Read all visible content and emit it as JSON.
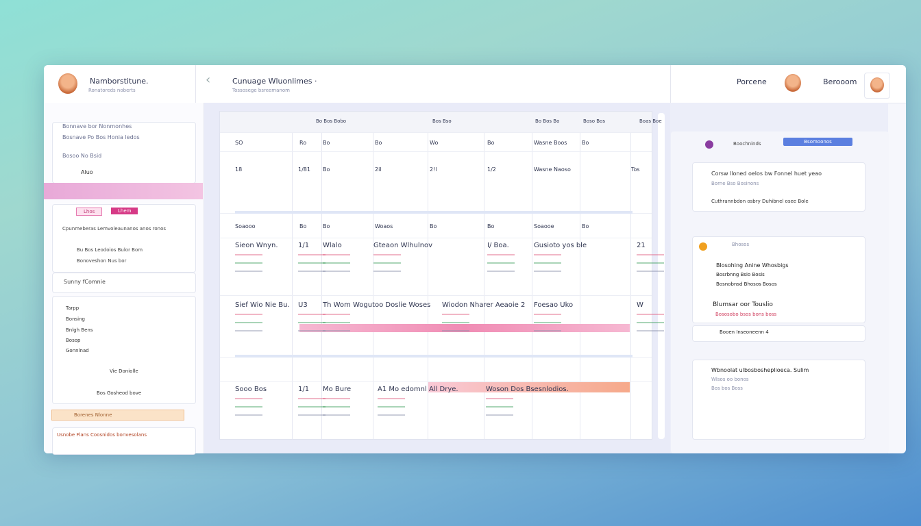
{
  "header": {
    "user_name": "Namborstitune.",
    "user_sub": "Ronatoreds noberts",
    "title": "Cunuage Wluonlimes ·",
    "subtitle": "Tossosege bsreemanom",
    "user2": "Porcene",
    "user3": "Berooom"
  },
  "sidebar": {
    "note_lines": [
      "Bonnave bor Nonmonhes",
      "Bosnave Po Bos Honia ledos",
      "Bosoo No Bsid"
    ],
    "note_footer": "Aluo",
    "tabs": [
      "Lhos",
      "Lhem"
    ],
    "list_title": "Cpunmeberas Lemvoleaunanos anos ronos",
    "list_items": [
      "Bu Bos Leodoios Bulor Bom",
      "Bonoveshon Nus bor"
    ],
    "search": "Sunny fComnie",
    "menu": [
      "Tarpp",
      "Bonsing",
      "Bnlgh Bens",
      "Bosop",
      "Gonnlnad"
    ],
    "rows": [
      "Vie Doniolle",
      "Bos Gosheod bove"
    ],
    "banner": "Borenes Nlonne",
    "footer_text": "Usnobe Flans Coosnidos bonvesolans"
  },
  "grid": {
    "header": [
      "Bo Bos Bobo",
      "Bos Bso",
      "Bo Bos Bo",
      "Boso Bos",
      "Boas Boe"
    ],
    "rows": [
      [
        "SO",
        "Ro",
        "Bo",
        "Bo",
        "Wo",
        "Bo",
        "Wasne Boos",
        "Bo"
      ],
      [
        "18",
        "1/81",
        "Bo",
        "2il",
        "2!l",
        "1/2",
        "Wasne Naoso",
        "Tos"
      ],
      [
        "Soaooo",
        "Bo",
        "Bo",
        "Woaos",
        "Bo",
        "Bo",
        "Soaooe",
        "Bo"
      ],
      [
        "Sieon Wnyn.",
        "1/1",
        "Wlalo",
        "Gteaon Wlhulnov",
        "I/ Boa.",
        "Gusioto yos ble",
        "21"
      ],
      [
        "Sief Wio Nie Bu.",
        "U3",
        "Th Wom Wogutoo Doslie Woses",
        "Wiodon Nharer Aeaoie 2",
        "Foesao Uko",
        "W"
      ],
      [
        "Sooo Bos",
        "1/1",
        "Mo Bure",
        "A1 Mo edomnl All Drye.",
        "Woson Dos Bsesnlodios."
      ]
    ]
  },
  "panel": {
    "toolbar": "Boochninds",
    "button": "Bsomoonos",
    "card1": [
      "Corsw lloned oelos bw Fonnel huet yeao",
      "Borne Bso Bosinons",
      "Cuthrannbdon osbry Duhibnel osee Bole"
    ],
    "card2_title": "Bhosos",
    "card2_items": [
      "Blosohing Anine Whosbigs",
      "Bosrbnng Bsio Bosis",
      "Bosnobnsd Bhosos Bosos"
    ],
    "card2_head": "Blumsar oor Touslio",
    "card2_sub": "Bososobo bsos bons boss",
    "row": "Booen Inseoneenn 4",
    "card3": [
      "Wbnoolat ulbosbosheplioeca. Sulim",
      "Wlsos oo bonos",
      "Bos bos Boss"
    ]
  }
}
